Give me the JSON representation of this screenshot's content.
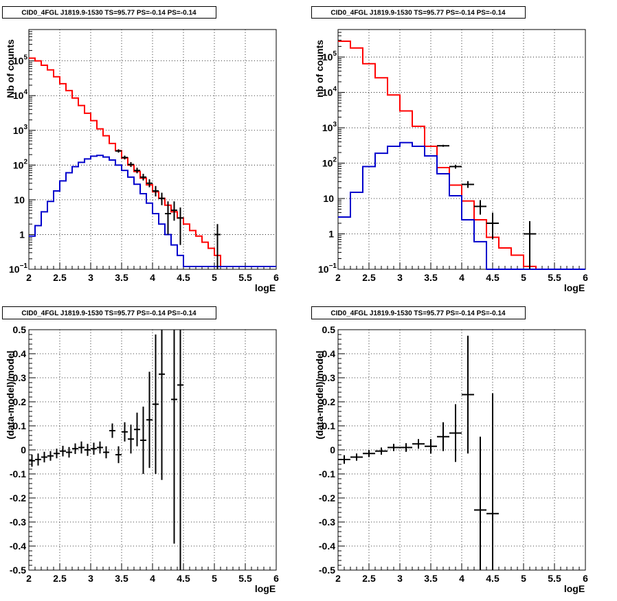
{
  "colors": {
    "data": "#000000",
    "total_model": "#ff0000",
    "source_model": "#0000cc"
  },
  "chart_data": [
    {
      "type": "line",
      "title": "CID0_4FGL J1819.9-1530 TS=95.77 PS=-0.14 PS=-0.14",
      "xlabel": "logE",
      "ylabel": "Nb of counts",
      "yscale": "log",
      "xlim": [
        2,
        6
      ],
      "ylim": [
        0.1,
        800000
      ],
      "grid": true,
      "x_ticks": [
        "2",
        "2.5",
        "3",
        "3.5",
        "4",
        "4.5",
        "5",
        "5.5",
        "6"
      ],
      "y_ticks": [
        {
          "value": 0.1,
          "base": "10",
          "exp": "−1"
        },
        {
          "value": 1,
          "label": "1"
        },
        {
          "value": 10,
          "label": "10"
        },
        {
          "value": 100,
          "base": "10",
          "exp": "2"
        },
        {
          "value": 1000,
          "base": "10",
          "exp": "3"
        },
        {
          "value": 10000,
          "base": "10",
          "exp": "4"
        },
        {
          "value": 100000,
          "base": "10",
          "exp": "5"
        }
      ],
      "bin_edges": [
        2,
        2.1,
        2.2,
        2.3,
        2.4,
        2.5,
        2.6,
        2.7,
        2.8,
        2.9,
        3.0,
        3.1,
        3.2,
        3.3,
        3.4,
        3.5,
        3.6,
        3.7,
        3.8,
        3.9,
        4.0,
        4.1,
        4.2,
        4.3,
        4.4,
        4.5,
        4.6,
        4.7,
        4.8,
        4.9,
        5.0,
        5.1,
        5.2,
        5.3,
        5.4,
        5.5,
        5.6,
        5.7,
        5.8,
        5.9,
        6.0
      ],
      "series": [
        {
          "kind": "step",
          "color": "#ff0000",
          "values": [
            120000,
            100000,
            75000,
            55000,
            35000,
            22000,
            14000,
            8500,
            5200,
            3100,
            1900,
            1100,
            700,
            420,
            260,
            160,
            100,
            65,
            42,
            27,
            17,
            11,
            7,
            4.5,
            3,
            2,
            1.3,
            0.9,
            0.6,
            0.4,
            0.25,
            0.12,
            0.12,
            0.12,
            0.12,
            0.12,
            0.12,
            0.12,
            0.12,
            0.12
          ]
        },
        {
          "kind": "step",
          "color": "#0000cc",
          "values": [
            0.9,
            1.8,
            4.5,
            9,
            18,
            35,
            60,
            90,
            120,
            150,
            180,
            190,
            170,
            140,
            100,
            70,
            45,
            28,
            15,
            8,
            4,
            2,
            1,
            0.5,
            0.25,
            0.12,
            0.12,
            0.12,
            0.12,
            0.12,
            0.12,
            0.12,
            0.12,
            0.12,
            0.12,
            0.12,
            0.12,
            0.12,
            0.12,
            0.12
          ]
        },
        {
          "kind": "errorbars",
          "color": "#000000",
          "points": [
            {
              "x": 3.45,
              "y": 255,
              "lo": 228,
              "hi": 285
            },
            {
              "x": 3.55,
              "y": 165,
              "lo": 145,
              "hi": 187
            },
            {
              "x": 3.65,
              "y": 104,
              "lo": 88,
              "hi": 122
            },
            {
              "x": 3.75,
              "y": 70,
              "lo": 58,
              "hi": 84
            },
            {
              "x": 3.85,
              "y": 45,
              "lo": 36,
              "hi": 56
            },
            {
              "x": 3.95,
              "y": 30,
              "lo": 23,
              "hi": 39
            },
            {
              "x": 4.05,
              "y": 18,
              "lo": 12.5,
              "hi": 25
            },
            {
              "x": 4.15,
              "y": 11,
              "lo": 7,
              "hi": 16
            },
            {
              "x": 4.25,
              "y": 4,
              "lo": 1,
              "hi": 9
            },
            {
              "x": 4.35,
              "y": 5,
              "lo": 2.5,
              "hi": 9
            },
            {
              "x": 4.45,
              "y": 3,
              "lo": 0.5,
              "hi": 6
            },
            {
              "x": 5.05,
              "y": 1,
              "lo": 0.1,
              "hi": 2
            }
          ]
        }
      ]
    },
    {
      "type": "line",
      "title": "CID0_4FGL J1819.9-1530 TS=95.77 PS=-0.14 PS=-0.14",
      "xlabel": "logE",
      "ylabel": "nb of counts",
      "yscale": "log",
      "xlim": [
        2,
        6
      ],
      "ylim": [
        0.1,
        600000
      ],
      "grid": true,
      "x_ticks": [
        "2",
        "2.5",
        "3",
        "3.5",
        "4",
        "4.5",
        "5",
        "5.5",
        "6"
      ],
      "y_ticks": [
        {
          "value": 0.1,
          "base": "10",
          "exp": "−1"
        },
        {
          "value": 1,
          "label": "1"
        },
        {
          "value": 10,
          "label": "10"
        },
        {
          "value": 100,
          "base": "10",
          "exp": "2"
        },
        {
          "value": 1000,
          "base": "10",
          "exp": "3"
        },
        {
          "value": 10000,
          "base": "10",
          "exp": "4"
        },
        {
          "value": 100000,
          "base": "10",
          "exp": "5"
        }
      ],
      "bin_edges": [
        2,
        2.2,
        2.4,
        2.6,
        2.8,
        3.0,
        3.2,
        3.4,
        3.6,
        3.8,
        4.0,
        4.2,
        4.4,
        4.6,
        4.8,
        5.0,
        5.2,
        5.4,
        5.6,
        5.8,
        6.0
      ],
      "series": [
        {
          "kind": "step",
          "color": "#ff0000",
          "values": [
            280000,
            180000,
            65000,
            26000,
            8500,
            3000,
            1100,
            300,
            75,
            24,
            8.5,
            2.5,
            0.8,
            0.4,
            0.25,
            0.12,
            0.1,
            0.1,
            0.1,
            0.1
          ]
        },
        {
          "kind": "step",
          "color": "#0000cc",
          "values": [
            3,
            15,
            80,
            190,
            300,
            380,
            300,
            160,
            50,
            12,
            2.5,
            0.6,
            0.1,
            0.1,
            0.1,
            0.1,
            0.1,
            0.1,
            0.1,
            0.1
          ]
        },
        {
          "kind": "errorbars",
          "color": "#000000",
          "points": [
            {
              "x": 3.7,
              "y": 310,
              "lo": 290,
              "hi": 330
            },
            {
              "x": 3.9,
              "y": 80,
              "lo": 70,
              "hi": 90
            },
            {
              "x": 4.1,
              "y": 25,
              "lo": 20,
              "hi": 31
            },
            {
              "x": 4.3,
              "y": 6,
              "lo": 3.5,
              "hi": 9
            },
            {
              "x": 4.5,
              "y": 2,
              "lo": 0.7,
              "hi": 4
            },
            {
              "x": 5.1,
              "y": 1,
              "lo": 0.1,
              "hi": 2.3
            }
          ]
        }
      ]
    },
    {
      "type": "scatter",
      "title": "CID0_4FGL J1819.9-1530 TS=95.77 PS=-0.14 PS=-0.14",
      "xlabel": "logE",
      "ylabel": "(data-model)/model",
      "xlim": [
        2,
        6
      ],
      "ylim": [
        -0.5,
        0.5
      ],
      "grid": true,
      "x_ticks": [
        "2",
        "2.5",
        "3",
        "3.5",
        "4",
        "4.5",
        "5",
        "5.5",
        "6"
      ],
      "y_ticks": [
        "-0.5",
        "-0.4",
        "-0.3",
        "-0.2",
        "-0.1",
        "0",
        "0.1",
        "0.2",
        "0.3",
        "0.4",
        "0.5"
      ],
      "points": [
        {
          "x": 2.05,
          "y": -0.045,
          "err": 0.025
        },
        {
          "x": 2.15,
          "y": -0.04,
          "err": 0.025
        },
        {
          "x": 2.25,
          "y": -0.03,
          "err": 0.022
        },
        {
          "x": 2.35,
          "y": -0.025,
          "err": 0.02
        },
        {
          "x": 2.45,
          "y": -0.015,
          "err": 0.02
        },
        {
          "x": 2.55,
          "y": -0.005,
          "err": 0.022
        },
        {
          "x": 2.65,
          "y": -0.01,
          "err": 0.022
        },
        {
          "x": 2.75,
          "y": 0.005,
          "err": 0.022
        },
        {
          "x": 2.85,
          "y": 0.01,
          "err": 0.025
        },
        {
          "x": 2.95,
          "y": 0.0,
          "err": 0.025
        },
        {
          "x": 3.05,
          "y": 0.005,
          "err": 0.025
        },
        {
          "x": 3.15,
          "y": 0.01,
          "err": 0.025
        },
        {
          "x": 3.25,
          "y": -0.01,
          "err": 0.025
        },
        {
          "x": 3.35,
          "y": 0.08,
          "err": 0.03
        },
        {
          "x": 3.45,
          "y": -0.02,
          "err": 0.035
        },
        {
          "x": 3.55,
          "y": 0.075,
          "err": 0.04
        },
        {
          "x": 3.65,
          "y": 0.045,
          "err": 0.06
        },
        {
          "x": 3.75,
          "y": 0.085,
          "err": 0.07
        },
        {
          "x": 3.85,
          "y": 0.04,
          "err": 0.14
        },
        {
          "x": 3.95,
          "y": 0.125,
          "err": 0.2
        },
        {
          "x": 4.05,
          "y": 0.19,
          "err": 0.29
        },
        {
          "x": 4.15,
          "y": 0.315,
          "err": 0.44
        },
        {
          "x": 4.35,
          "y": 0.21,
          "err": 0.6
        },
        {
          "x": 4.45,
          "y": 0.27,
          "err": 0.8
        }
      ]
    },
    {
      "type": "scatter",
      "title": "CID0_4FGL J1819.9-1530 TS=95.77 PS=-0.14 PS=-0.14",
      "xlabel": "logE",
      "ylabel": "(data-model)/model",
      "xlim": [
        2,
        6
      ],
      "ylim": [
        -0.5,
        0.5
      ],
      "grid": true,
      "x_ticks": [
        "2",
        "2.5",
        "3",
        "3.5",
        "4",
        "4.5",
        "5",
        "5.5",
        "6"
      ],
      "y_ticks": [
        "-0.5",
        "-0.4",
        "-0.3",
        "-0.2",
        "-0.1",
        "0",
        "0.1",
        "0.2",
        "0.3",
        "0.4",
        "0.5"
      ],
      "points": [
        {
          "x": 2.1,
          "y": -0.04,
          "err": 0.018
        },
        {
          "x": 2.3,
          "y": -0.03,
          "err": 0.015
        },
        {
          "x": 2.5,
          "y": -0.015,
          "err": 0.015
        },
        {
          "x": 2.7,
          "y": -0.005,
          "err": 0.015
        },
        {
          "x": 2.9,
          "y": 0.01,
          "err": 0.015
        },
        {
          "x": 3.1,
          "y": 0.01,
          "err": 0.018
        },
        {
          "x": 3.3,
          "y": 0.025,
          "err": 0.02
        },
        {
          "x": 3.5,
          "y": 0.015,
          "err": 0.03
        },
        {
          "x": 3.7,
          "y": 0.055,
          "err": 0.06
        },
        {
          "x": 3.9,
          "y": 0.07,
          "err": 0.12
        },
        {
          "x": 4.1,
          "y": 0.23,
          "err": 0.245
        },
        {
          "x": 4.3,
          "y": -0.25,
          "err": 0.305
        },
        {
          "x": 4.5,
          "y": -0.265,
          "err": 0.5
        }
      ]
    }
  ]
}
